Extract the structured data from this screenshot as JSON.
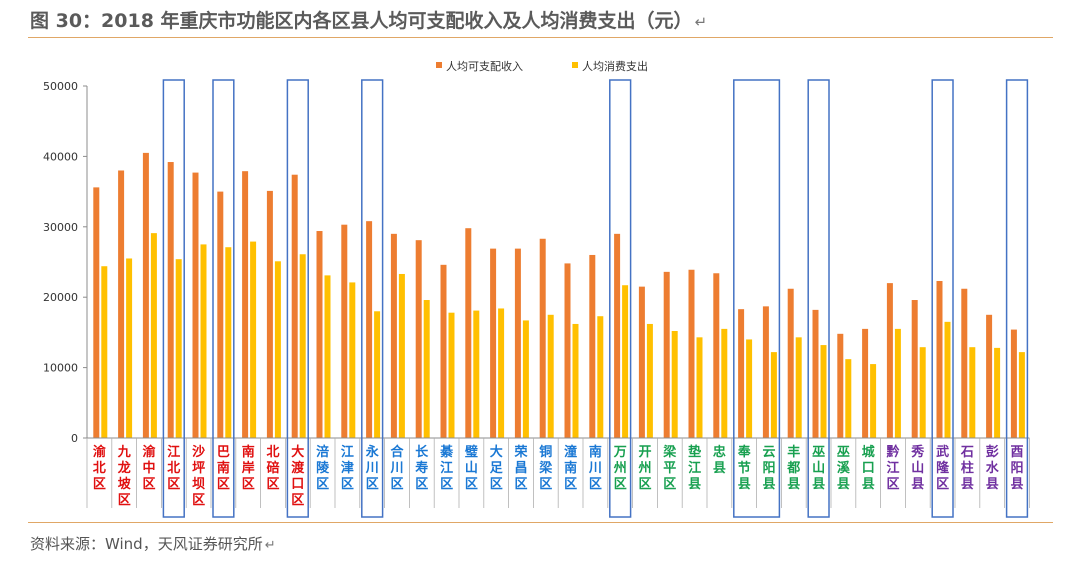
{
  "title": "图 30：2018 年重庆市功能区内各区县人均可支配收入及人均消费支出（元）",
  "source": "资料来源：Wind，天风证券研究所",
  "colors": {
    "income": "#ed7d31",
    "consumption": "#ffc000",
    "highlight_box": "#4472c4",
    "rule": "#e0a766",
    "zone_core": "#e01010",
    "zone_new": "#1a78d4",
    "zone_northeast": "#18a050",
    "zone_southeast": "#7030a0"
  },
  "chart_data": {
    "type": "bar",
    "ylim": [
      0,
      50000
    ],
    "yticks": [
      "0",
      "10000",
      "20000",
      "30000",
      "40000",
      "50000"
    ],
    "legend_position": "top",
    "grid": false,
    "categories": [
      "渝北区",
      "九龙坡区",
      "渝中区",
      "江北区",
      "沙坪坝区",
      "巴南区",
      "南岸区",
      "北碚区",
      "大渡口区",
      "涪陵区",
      "江津区",
      "永川区",
      "合川区",
      "长寿区",
      "綦江区",
      "璧山区",
      "大足区",
      "荣昌区",
      "铜梁区",
      "潼南区",
      "南川区",
      "万州区",
      "开州区",
      "梁平区",
      "垫江县",
      "忠县",
      "奉节县",
      "云阳县",
      "丰都县",
      "巫山县",
      "巫溪县",
      "城口县",
      "黔江区",
      "秀山县",
      "武隆区",
      "石柱县",
      "彭水县",
      "酉阳县"
    ],
    "category_zone": [
      "core",
      "core",
      "core",
      "core",
      "core",
      "core",
      "core",
      "core",
      "core",
      "new",
      "new",
      "new",
      "new",
      "new",
      "new",
      "new",
      "new",
      "new",
      "new",
      "new",
      "new",
      "northeast",
      "northeast",
      "northeast",
      "northeast",
      "northeast",
      "northeast",
      "northeast",
      "northeast",
      "northeast",
      "northeast",
      "northeast",
      "southeast",
      "southeast",
      "southeast",
      "southeast",
      "southeast",
      "southeast"
    ],
    "highlighted": [
      "江北区",
      "巴南区",
      "大渡口区",
      "永川区",
      "万州区",
      "奉节县",
      "云阳县",
      "巫山县",
      "武隆区",
      "酉阳县"
    ],
    "series": [
      {
        "name": "人均可支配收入",
        "values": [
          35600,
          38000,
          40500,
          39200,
          37700,
          35000,
          37900,
          35100,
          37400,
          29400,
          30300,
          30800,
          29000,
          28100,
          24600,
          29800,
          26900,
          26900,
          28300,
          24800,
          26000,
          29000,
          21500,
          23600,
          23900,
          23400,
          18300,
          18700,
          21200,
          18200,
          14800,
          15500,
          22000,
          19600,
          22300,
          21200,
          17500,
          15400
        ]
      },
      {
        "name": "人均消费支出",
        "values": [
          24400,
          25500,
          29100,
          25400,
          27500,
          27100,
          27900,
          25100,
          26100,
          23100,
          22100,
          18000,
          23300,
          19600,
          17800,
          18100,
          18400,
          16700,
          17500,
          16200,
          17300,
          21700,
          16200,
          15200,
          14300,
          15500,
          14000,
          12200,
          14300,
          13200,
          11200,
          10500,
          15500,
          12900,
          16500,
          12900,
          12800,
          12200
        ]
      }
    ]
  }
}
